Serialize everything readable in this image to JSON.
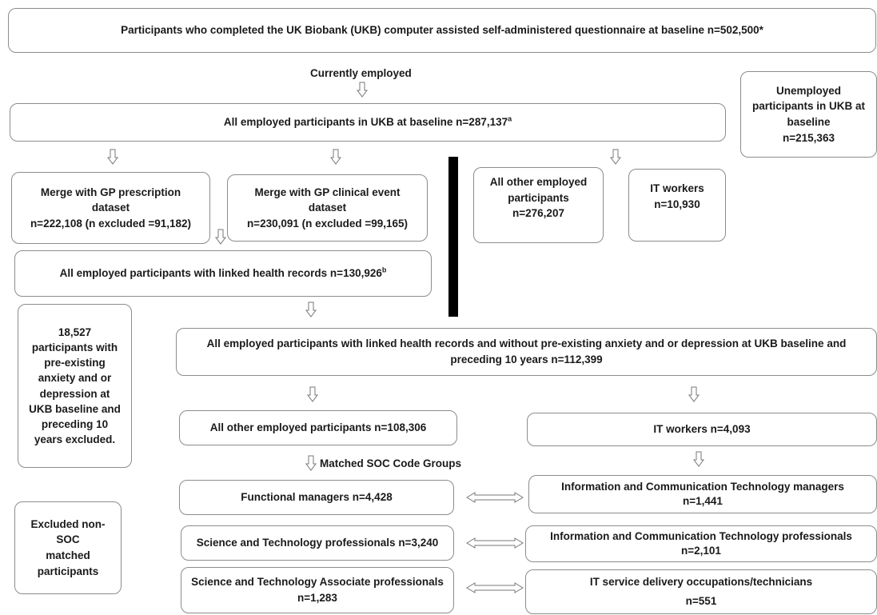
{
  "boxes": {
    "top": "Participants who completed the UK Biobank (UKB) computer assisted self-administered questionnaire at baseline n=502,500*",
    "employed_label": "Currently employed",
    "employed": {
      "text": "All employed participants in UKB at baseline n=287,137",
      "sup": "a"
    },
    "unemployed": [
      "Unemployed",
      "participants in UKB at",
      "baseline",
      "n=215,363"
    ],
    "gp_prescription": [
      "Merge with GP prescription",
      "dataset",
      "n=222,108 (n excluded =91,182)"
    ],
    "gp_clinical": [
      "Merge with GP clinical event",
      "dataset",
      "n=230,091 (n excluded =99,165)"
    ],
    "other_employed_top": [
      "All other employed",
      "participants",
      "n=276,207"
    ],
    "it_workers_top": [
      "IT workers",
      "n=10,930"
    ],
    "linked": {
      "text": "All employed participants with linked health records n=130,926",
      "sup": "b"
    },
    "excluded_anxiety": [
      "18,527",
      "participants with",
      "pre-existing",
      "anxiety and or",
      "depression at",
      "UKB baseline and",
      "preceding 10",
      "years excluded."
    ],
    "without_anxiety": [
      "All employed participants with linked health records and without pre-existing anxiety and or depression at UKB baseline and",
      "preceding 10 years n=112,399"
    ],
    "other_employed_mid": "All other employed participants n=108,306",
    "it_workers_mid": "IT workers n=4,093",
    "matched_label": "Matched SOC Code Groups",
    "functional_managers": "Functional managers n=4,428",
    "ict_managers": [
      "Information and Communication Technology managers",
      "n=1,441"
    ],
    "sci_tech_prof": "Science and Technology professionals n=3,240",
    "ict_prof": [
      "Information and Communication Technology professionals",
      "n=2,101"
    ],
    "sci_tech_assoc": [
      "Science and Technology Associate professionals",
      "n=1,283"
    ],
    "it_service": [
      "IT service delivery occupations/technicians",
      "n=551"
    ],
    "excluded_nonsoc": [
      "Excluded non-SOC",
      "matched",
      "participants"
    ]
  }
}
